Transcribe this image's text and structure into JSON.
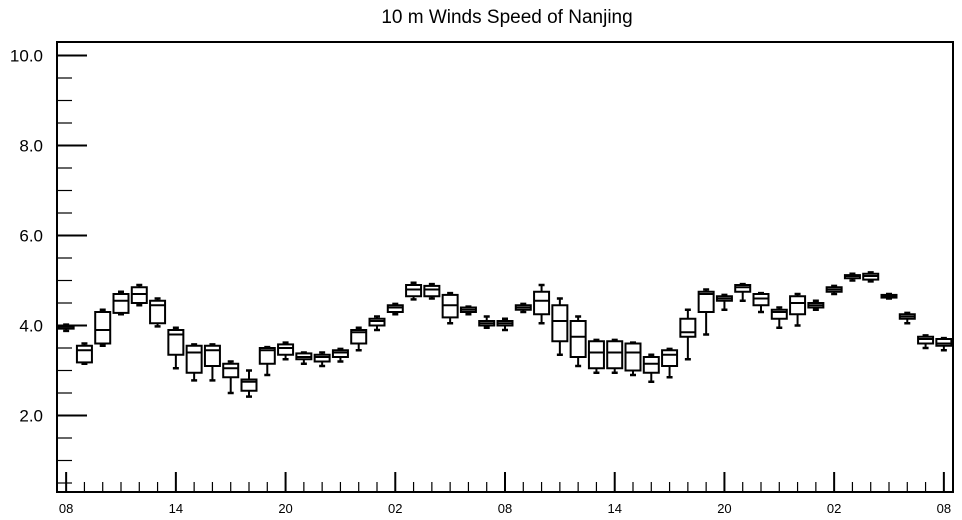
{
  "chart_data": {
    "type": "box",
    "title": "10 m Winds Speed of Nanjing",
    "xlabel": "",
    "ylabel": "",
    "ylim": [
      0.3,
      10.3
    ],
    "xlim": [
      -0.5,
      48.5
    ],
    "y_ticks": [
      2.0,
      4.0,
      6.0,
      8.0,
      10.0
    ],
    "y_tick_labels": [
      "2.0",
      "4.0",
      "6.0",
      "8.0",
      "10.0"
    ],
    "y_minor_step": 0.5,
    "x_ticks": [
      0,
      6,
      12,
      18,
      24,
      30,
      36,
      42,
      48
    ],
    "x_tick_labels": [
      "08",
      "14",
      "20",
      "02",
      "08",
      "14",
      "20",
      "02",
      "08"
    ],
    "grid": false,
    "legend": "none",
    "boxes": [
      {
        "x": 0,
        "min": 3.88,
        "q1": 3.93,
        "median": 3.97,
        "q3": 4.0,
        "max": 4.02
      },
      {
        "x": 1,
        "min": 3.15,
        "q1": 3.18,
        "median": 3.45,
        "q3": 3.55,
        "max": 3.6
      },
      {
        "x": 2,
        "min": 3.55,
        "q1": 3.6,
        "median": 3.9,
        "q3": 4.3,
        "max": 4.35
      },
      {
        "x": 3,
        "min": 4.25,
        "q1": 4.28,
        "median": 4.55,
        "q3": 4.7,
        "max": 4.75
      },
      {
        "x": 4,
        "min": 4.45,
        "q1": 4.5,
        "median": 4.7,
        "q3": 4.85,
        "max": 4.9
      },
      {
        "x": 5,
        "min": 3.98,
        "q1": 4.05,
        "median": 4.45,
        "q3": 4.55,
        "max": 4.6
      },
      {
        "x": 6,
        "min": 3.05,
        "q1": 3.35,
        "median": 3.8,
        "q3": 3.9,
        "max": 3.95
      },
      {
        "x": 7,
        "min": 2.78,
        "q1": 2.95,
        "median": 3.4,
        "q3": 3.55,
        "max": 3.58
      },
      {
        "x": 8,
        "min": 2.78,
        "q1": 3.1,
        "median": 3.45,
        "q3": 3.55,
        "max": 3.58
      },
      {
        "x": 9,
        "min": 2.5,
        "q1": 2.85,
        "median": 3.05,
        "q3": 3.15,
        "max": 3.2
      },
      {
        "x": 10,
        "min": 2.42,
        "q1": 2.55,
        "median": 2.75,
        "q3": 2.8,
        "max": 3.0
      },
      {
        "x": 11,
        "min": 2.9,
        "q1": 3.15,
        "median": 3.45,
        "q3": 3.5,
        "max": 3.52
      },
      {
        "x": 12,
        "min": 3.25,
        "q1": 3.35,
        "median": 3.5,
        "q3": 3.58,
        "max": 3.62
      },
      {
        "x": 13,
        "min": 3.15,
        "q1": 3.25,
        "median": 3.3,
        "q3": 3.38,
        "max": 3.4
      },
      {
        "x": 14,
        "min": 3.1,
        "q1": 3.2,
        "median": 3.3,
        "q3": 3.35,
        "max": 3.4
      },
      {
        "x": 15,
        "min": 3.2,
        "q1": 3.3,
        "median": 3.4,
        "q3": 3.45,
        "max": 3.48
      },
      {
        "x": 16,
        "min": 3.45,
        "q1": 3.6,
        "median": 3.85,
        "q3": 3.9,
        "max": 3.95
      },
      {
        "x": 17,
        "min": 3.9,
        "q1": 4.0,
        "median": 4.1,
        "q3": 4.15,
        "max": 4.2
      },
      {
        "x": 18,
        "min": 4.25,
        "q1": 4.3,
        "median": 4.4,
        "q3": 4.45,
        "max": 4.48
      },
      {
        "x": 19,
        "min": 4.58,
        "q1": 4.65,
        "median": 4.8,
        "q3": 4.9,
        "max": 4.95
      },
      {
        "x": 20,
        "min": 4.6,
        "q1": 4.65,
        "median": 4.8,
        "q3": 4.88,
        "max": 4.92
      },
      {
        "x": 21,
        "min": 4.05,
        "q1": 4.18,
        "median": 4.45,
        "q3": 4.68,
        "max": 4.72
      },
      {
        "x": 22,
        "min": 4.25,
        "q1": 4.3,
        "median": 4.35,
        "q3": 4.4,
        "max": 4.42
      },
      {
        "x": 23,
        "min": 3.95,
        "q1": 4.0,
        "median": 4.05,
        "q3": 4.1,
        "max": 4.2
      },
      {
        "x": 24,
        "min": 3.9,
        "q1": 4.0,
        "median": 4.05,
        "q3": 4.1,
        "max": 4.15
      },
      {
        "x": 25,
        "min": 4.3,
        "q1": 4.35,
        "median": 4.4,
        "q3": 4.45,
        "max": 4.48
      },
      {
        "x": 26,
        "min": 4.05,
        "q1": 4.25,
        "median": 4.55,
        "q3": 4.75,
        "max": 4.9
      },
      {
        "x": 27,
        "min": 3.35,
        "q1": 3.65,
        "median": 4.1,
        "q3": 4.45,
        "max": 4.6
      },
      {
        "x": 28,
        "min": 3.1,
        "q1": 3.3,
        "median": 3.75,
        "q3": 4.1,
        "max": 4.2
      },
      {
        "x": 29,
        "min": 2.95,
        "q1": 3.05,
        "median": 3.4,
        "q3": 3.65,
        "max": 3.68
      },
      {
        "x": 30,
        "min": 2.95,
        "q1": 3.05,
        "median": 3.4,
        "q3": 3.65,
        "max": 3.68
      },
      {
        "x": 31,
        "min": 2.9,
        "q1": 3.0,
        "median": 3.4,
        "q3": 3.6,
        "max": 3.62
      },
      {
        "x": 32,
        "min": 2.75,
        "q1": 2.95,
        "median": 3.15,
        "q3": 3.3,
        "max": 3.35
      },
      {
        "x": 33,
        "min": 2.85,
        "q1": 3.1,
        "median": 3.35,
        "q3": 3.45,
        "max": 3.48
      },
      {
        "x": 34,
        "min": 3.25,
        "q1": 3.75,
        "median": 3.85,
        "q3": 4.15,
        "max": 4.35
      },
      {
        "x": 35,
        "min": 3.8,
        "q1": 4.3,
        "median": 4.7,
        "q3": 4.75,
        "max": 4.8
      },
      {
        "x": 36,
        "min": 4.35,
        "q1": 4.55,
        "median": 4.6,
        "q3": 4.65,
        "max": 4.68
      },
      {
        "x": 37,
        "min": 4.55,
        "q1": 4.75,
        "median": 4.85,
        "q3": 4.9,
        "max": 4.92
      },
      {
        "x": 38,
        "min": 4.3,
        "q1": 4.45,
        "median": 4.6,
        "q3": 4.7,
        "max": 4.72
      },
      {
        "x": 39,
        "min": 3.95,
        "q1": 4.15,
        "median": 4.3,
        "q3": 4.35,
        "max": 4.4
      },
      {
        "x": 40,
        "min": 4.0,
        "q1": 4.25,
        "median": 4.5,
        "q3": 4.65,
        "max": 4.7
      },
      {
        "x": 41,
        "min": 4.35,
        "q1": 4.4,
        "median": 4.45,
        "q3": 4.5,
        "max": 4.55
      },
      {
        "x": 42,
        "min": 4.7,
        "q1": 4.75,
        "median": 4.8,
        "q3": 4.85,
        "max": 4.88
      },
      {
        "x": 43,
        "min": 5.0,
        "q1": 5.05,
        "median": 5.1,
        "q3": 5.12,
        "max": 5.15
      },
      {
        "x": 44,
        "min": 4.98,
        "q1": 5.02,
        "median": 5.1,
        "q3": 5.15,
        "max": 5.18
      },
      {
        "x": 45,
        "min": 4.6,
        "q1": 4.62,
        "median": 4.65,
        "q3": 4.68,
        "max": 4.7
      },
      {
        "x": 46,
        "min": 4.05,
        "q1": 4.15,
        "median": 4.2,
        "q3": 4.25,
        "max": 4.28
      },
      {
        "x": 47,
        "min": 3.5,
        "q1": 3.6,
        "median": 3.7,
        "q3": 3.75,
        "max": 3.78
      },
      {
        "x": 48,
        "min": 3.45,
        "q1": 3.55,
        "median": 3.6,
        "q3": 3.7,
        "max": 3.72
      }
    ],
    "colors": {
      "line": "#000000",
      "background": "#ffffff"
    }
  }
}
